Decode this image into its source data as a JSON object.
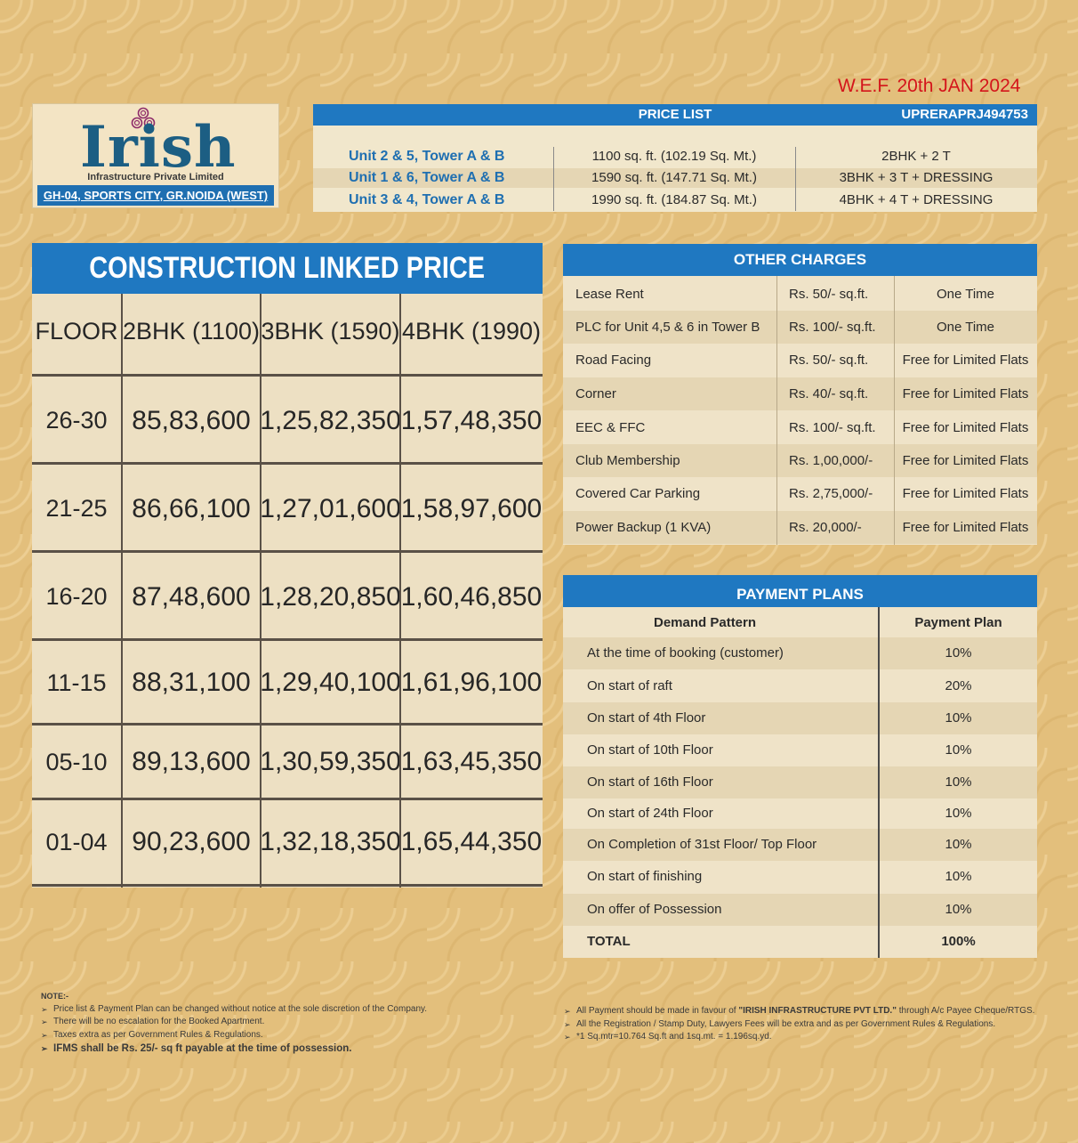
{
  "wef": "W.E.F. 20th JAN  2024",
  "logo": {
    "name": "Irish",
    "subtitle": "Infrastructure Private Limited",
    "address": "GH-04, SPORTS CITY, GR.NOIDA (WEST)"
  },
  "price_list": {
    "title": "PRICE LIST",
    "rera": "UPRERAPRJ494753",
    "rows": [
      {
        "unit": "Unit 2 & 5, Tower A & B",
        "area": "1100 sq. ft. (102.19 Sq. Mt.)",
        "config": "2BHK + 2 T"
      },
      {
        "unit": "Unit 1 & 6, Tower A & B",
        "area": "1590 sq. ft. (147.71 Sq. Mt.)",
        "config": "3BHK + 3 T + DRESSING"
      },
      {
        "unit": "Unit 3 & 4, Tower A & B",
        "area": "1990 sq. ft. (184.87 Sq. Mt.)",
        "config": "4BHK + 4 T + DRESSING"
      }
    ]
  },
  "construction": {
    "title": "CONSTRUCTION LINKED PRICE",
    "headers": [
      "FLOOR",
      "2BHK (1100)",
      "3BHK (1590)",
      "4BHK (1990)"
    ],
    "rows": [
      [
        "26-30",
        "85,83,600",
        "1,25,82,350",
        "1,57,48,350"
      ],
      [
        "21-25",
        "86,66,100",
        "1,27,01,600",
        "1,58,97,600"
      ],
      [
        "16-20",
        "87,48,600",
        "1,28,20,850",
        "1,60,46,850"
      ],
      [
        "11-15",
        "88,31,100",
        "1,29,40,100",
        "1,61,96,100"
      ],
      [
        "05-10",
        "89,13,600",
        "1,30,59,350",
        "1,63,45,350"
      ],
      [
        "01-04",
        "90,23,600",
        "1,32,18,350",
        "1,65,44,350"
      ]
    ]
  },
  "other_charges": {
    "title": "OTHER CHARGES",
    "rows": [
      [
        "Lease Rent",
        "Rs. 50/- sq.ft.",
        "One Time"
      ],
      [
        "PLC for Unit 4,5 & 6 in Tower B",
        "Rs. 100/- sq.ft.",
        "One Time"
      ],
      [
        "Road Facing",
        "Rs. 50/- sq.ft.",
        "Free for Limited Flats"
      ],
      [
        "Corner",
        "Rs. 40/- sq.ft.",
        "Free for Limited Flats"
      ],
      [
        "EEC & FFC",
        "Rs. 100/- sq.ft.",
        "Free for Limited Flats"
      ],
      [
        "Club Membership",
        "Rs. 1,00,000/-",
        "Free for Limited Flats"
      ],
      [
        "Covered Car Parking",
        "Rs. 2,75,000/-",
        "Free for Limited Flats"
      ],
      [
        "Power Backup (1 KVA)",
        "Rs. 20,000/-",
        "Free for Limited Flats"
      ]
    ]
  },
  "payment_plans": {
    "title": "PAYMENT PLANS",
    "col1": "Demand Pattern",
    "col2": "Payment Plan",
    "rows": [
      [
        "At the time of booking (customer)",
        "10%"
      ],
      [
        "On start of raft",
        "20%"
      ],
      [
        "On start of 4th Floor",
        "10%"
      ],
      [
        "On start of 10th Floor",
        "10%"
      ],
      [
        "On start of 16th Floor",
        "10%"
      ],
      [
        "On start of 24th Floor",
        "10%"
      ],
      [
        "On Completion of 31st Floor/ Top Floor",
        "10%"
      ],
      [
        "On start of finishing",
        "10%"
      ],
      [
        "On offer of Possession",
        "10%"
      ]
    ],
    "total_label": "TOTAL",
    "total_value": "100%"
  },
  "notes_left": {
    "title": "NOTE:-",
    "items": [
      "Price list & Payment Plan can be changed without notice at the sole discretion of the Company.",
      "There will be no escalation for the Booked Apartment.",
      "Taxes extra as per Government Rules & Regulations."
    ],
    "bold_item": "IFMS shall be Rs. 25/- sq ft payable at the time of possession."
  },
  "notes_right": {
    "item1_pre": "All Payment should be made in favour of ",
    "item1_bold": "\"IRISH INFRASTRUCTURE PVT LTD.\"",
    "item1_post": " through A/c Payee Cheque/RTGS.",
    "item2": "All the Registration / Stamp Duty, Lawyers Fees will be extra and as per Government Rules & Regulations.",
    "item3": "*1 Sq.mtr=10.764 Sq.ft  and 1sq.mt. = 1.196sq.yd."
  }
}
